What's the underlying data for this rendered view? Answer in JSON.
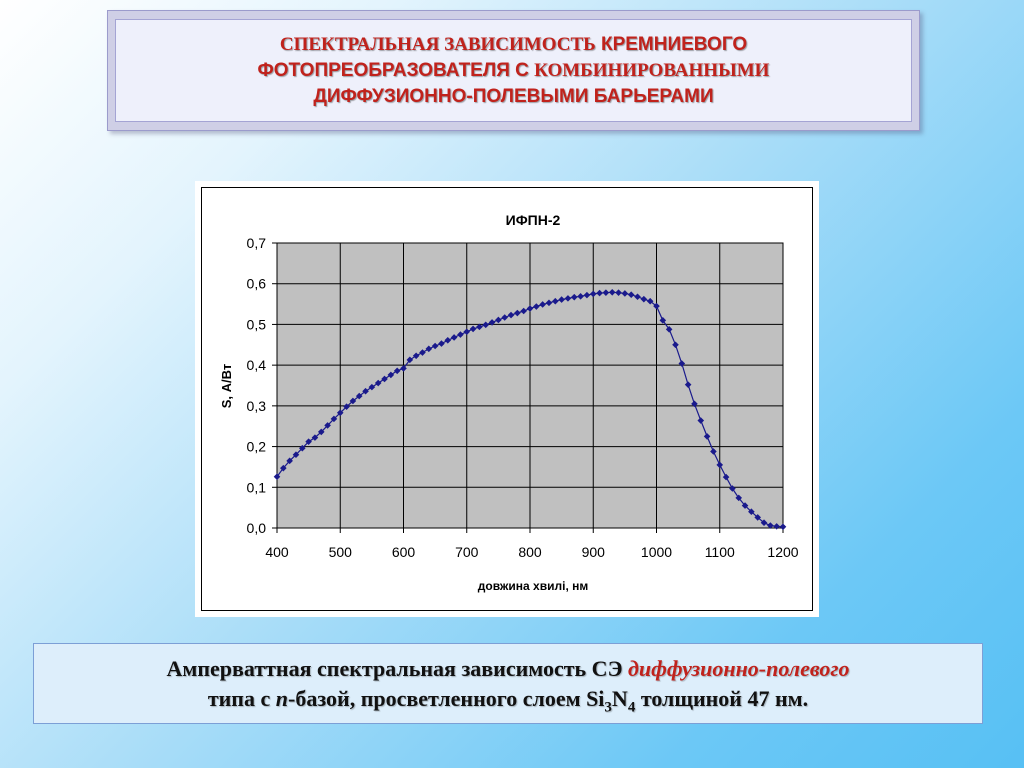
{
  "slide": {
    "title_line1_a": "СПЕКТРАЛЬНАЯ ЗАВИСИМОСТЬ",
    "title_line1_b": "КРЕМНИЕВОГО",
    "title_line2_a": "ФОТОПРЕОБРАЗОВАТЕЛЯ С",
    "title_line2_b": "КОМБИНИРОВАННЫМИ",
    "title_line3": "ДИФФУЗИОННО-ПОЛЕВЫМИ БАРЬЕРАМИ",
    "title_color": "#c0221c"
  },
  "caption": {
    "part1": "Амперваттная спектральная зависимость СЭ",
    "accent": "диффузионно-полевого",
    "part2": "типа с",
    "n_letter": "n",
    "part3": "-базой, просветленного слоем Si",
    "sub1": "3",
    "part4": "N",
    "sub2": "4",
    "part5": "толщиной 47 нм.",
    "accent_color": "#c0221c"
  },
  "chart_data": {
    "type": "line",
    "title": "ИФПН-2",
    "xlabel": "довжина хвилі, нм",
    "ylabel": "S, А/Вт",
    "xlim": [
      400,
      1200
    ],
    "ylim": [
      0,
      0.7
    ],
    "xticks": [
      "400",
      "500",
      "600",
      "700",
      "800",
      "900",
      "1000",
      "1100",
      "1200"
    ],
    "yticks": [
      "0,0",
      "0,1",
      "0,2",
      "0,3",
      "0,4",
      "0,5",
      "0,6",
      "0,7"
    ],
    "grid": true,
    "plot_background": "#c0c0c0",
    "line_color": "#1a1a8c",
    "marker": "diamond",
    "series": [
      {
        "x": [
          400,
          410,
          420,
          430,
          440,
          450,
          460,
          470,
          480,
          490,
          500,
          510,
          520,
          530,
          540,
          550,
          560,
          570,
          580,
          590,
          600,
          610,
          620,
          630,
          640,
          650,
          660,
          670,
          680,
          690,
          700,
          710,
          720,
          730,
          740,
          750,
          760,
          770,
          780,
          790,
          800,
          810,
          820,
          830,
          840,
          850,
          860,
          870,
          880,
          890,
          900,
          910,
          920,
          930,
          940,
          950,
          960,
          970,
          980,
          990,
          1000,
          1010,
          1020,
          1030,
          1040,
          1050,
          1060,
          1070,
          1080,
          1090,
          1100,
          1110,
          1120,
          1130,
          1140,
          1150,
          1160,
          1170,
          1180,
          1190,
          1200
        ],
        "y": [
          0.126,
          0.147,
          0.165,
          0.18,
          0.196,
          0.212,
          0.222,
          0.236,
          0.252,
          0.268,
          0.283,
          0.298,
          0.312,
          0.324,
          0.336,
          0.346,
          0.356,
          0.366,
          0.376,
          0.386,
          0.392,
          0.413,
          0.423,
          0.431,
          0.44,
          0.447,
          0.453,
          0.461,
          0.468,
          0.475,
          0.482,
          0.489,
          0.494,
          0.499,
          0.505,
          0.511,
          0.517,
          0.523,
          0.528,
          0.533,
          0.539,
          0.544,
          0.549,
          0.553,
          0.557,
          0.561,
          0.564,
          0.567,
          0.569,
          0.572,
          0.575,
          0.577,
          0.578,
          0.579,
          0.578,
          0.576,
          0.573,
          0.568,
          0.562,
          0.557,
          0.545,
          0.51,
          0.488,
          0.45,
          0.404,
          0.352,
          0.305,
          0.264,
          0.225,
          0.188,
          0.155,
          0.125,
          0.097,
          0.074,
          0.055,
          0.04,
          0.026,
          0.013,
          0.006,
          0.004,
          0.003
        ]
      }
    ]
  }
}
